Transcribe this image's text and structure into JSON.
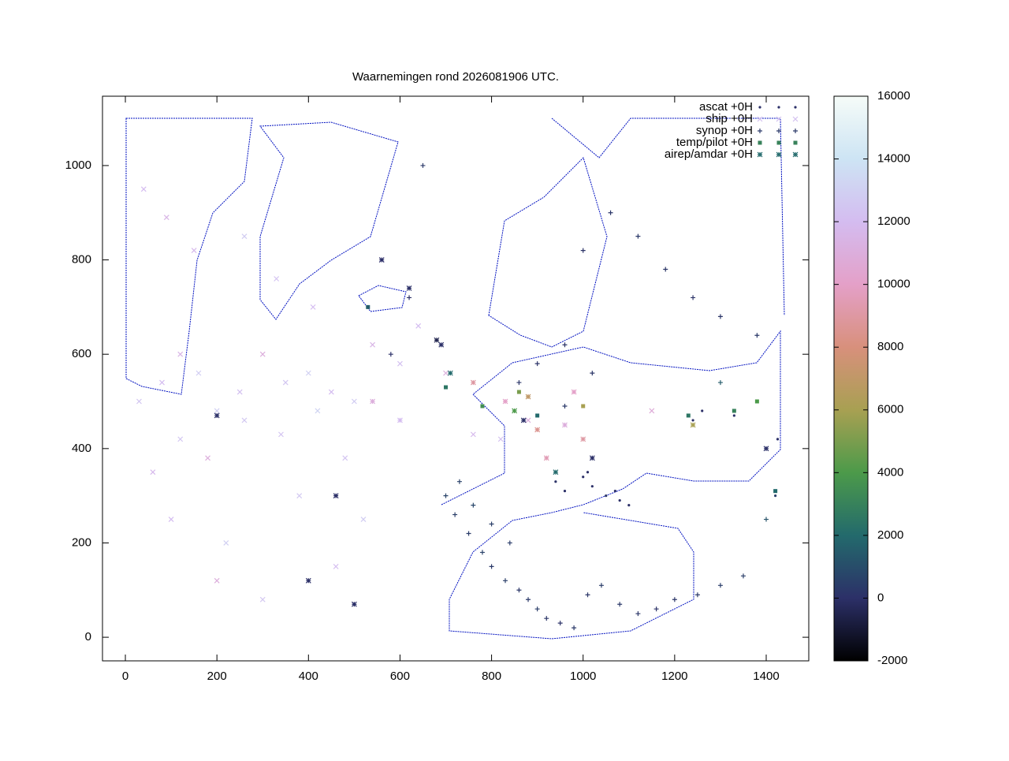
{
  "chart_data": {
    "type": "scatter",
    "title": "Waarnemingen rond 2026081906 UTC.",
    "xlim": [
      -50,
      1493
    ],
    "ylim": [
      -50,
      1147
    ],
    "xticks": [
      0,
      200,
      400,
      600,
      800,
      1000,
      1200,
      1400
    ],
    "yticks": [
      0,
      200,
      400,
      600,
      800,
      1000
    ],
    "legend": "top-right",
    "colorbar": {
      "range": [
        -2000,
        16000
      ],
      "ticks": [
        -2000,
        0,
        2000,
        4000,
        6000,
        8000,
        10000,
        12000,
        14000,
        16000
      ],
      "colors": [
        "#000000",
        "#2c3068",
        "#236a6c",
        "#4c9a4a",
        "#a8a052",
        "#d8907c",
        "#e4a0c8",
        "#d4bcf0",
        "#cde4f4",
        "#f6fcf8"
      ]
    },
    "series": [
      {
        "name": "ascat +0H",
        "marker": "dot",
        "x": [
          1000,
          1020,
          1050,
          1080,
          1100,
          960,
          940,
          1240,
          1260,
          1420,
          1425,
          1330,
          1010,
          1070
        ],
        "y": [
          340,
          320,
          300,
          290,
          280,
          310,
          330,
          460,
          480,
          300,
          420,
          470,
          350,
          310
        ],
        "z": [
          0,
          0,
          200,
          0,
          0,
          0,
          100,
          0,
          0,
          500,
          0,
          0,
          0,
          0
        ]
      },
      {
        "name": "ship +0H",
        "marker": "x",
        "x": [
          30,
          80,
          120,
          160,
          200,
          250,
          300,
          350,
          400,
          450,
          500,
          120,
          180,
          260,
          340,
          420,
          60,
          100,
          220,
          380,
          480,
          540,
          600,
          640,
          700,
          520,
          460,
          200,
          300,
          150,
          40,
          90,
          260,
          330,
          410,
          560,
          760,
          820,
          880,
          1150
        ],
        "y": [
          500,
          540,
          600,
          560,
          480,
          520,
          600,
          540,
          560,
          520,
          500,
          420,
          380,
          460,
          430,
          480,
          350,
          250,
          200,
          300,
          380,
          620,
          580,
          660,
          560,
          250,
          150,
          120,
          80,
          820,
          950,
          890,
          850,
          760,
          700,
          800,
          430,
          420,
          460,
          480
        ],
        "z": [
          12500,
          12000,
          11500,
          12800,
          13000,
          12200,
          11000,
          12500,
          13000,
          12000,
          12800,
          12500,
          11000,
          12600,
          12400,
          13200,
          11800,
          12000,
          13000,
          12600,
          12400,
          11500,
          12200,
          12000,
          11000,
          12800,
          12000,
          11000,
          12500,
          11800,
          12000,
          11500,
          12800,
          12300,
          12000,
          11500,
          11800,
          12200,
          11000,
          10800
        ]
      },
      {
        "name": "synop +0H",
        "marker": "plus",
        "x": [
          720,
          750,
          780,
          800,
          830,
          860,
          880,
          900,
          920,
          950,
          980,
          1010,
          1040,
          1080,
          1120,
          1160,
          1200,
          1250,
          1300,
          1350,
          1400,
          1000,
          1060,
          1120,
          1180,
          1240,
          1300,
          1380,
          700,
          730,
          760,
          800,
          840,
          900,
          960,
          1020,
          620,
          580,
          650,
          860,
          960,
          1300
        ],
        "y": [
          260,
          220,
          180,
          150,
          120,
          100,
          80,
          60,
          40,
          30,
          20,
          90,
          110,
          70,
          50,
          60,
          80,
          90,
          110,
          130,
          250,
          820,
          900,
          850,
          780,
          720,
          680,
          640,
          300,
          330,
          280,
          240,
          200,
          580,
          620,
          560,
          720,
          600,
          1000,
          540,
          490,
          540
        ],
        "z": [
          500,
          400,
          600,
          300,
          500,
          200,
          300,
          400,
          200,
          100,
          300,
          200,
          400,
          300,
          200,
          100,
          200,
          300,
          400,
          500,
          1200,
          100,
          200,
          300,
          200,
          100,
          200,
          300,
          700,
          600,
          800,
          500,
          400,
          100,
          100,
          200,
          0,
          0,
          300,
          200,
          300,
          1500
        ]
      },
      {
        "name": "temp/pilot +0H",
        "marker": "square",
        "x": [
          530,
          700,
          780,
          860,
          900,
          1000,
          1230,
          1330,
          1380,
          1420
        ],
        "y": [
          700,
          530,
          490,
          520,
          470,
          490,
          470,
          480,
          500,
          310
        ],
        "z": [
          1500,
          2500,
          3500,
          5000,
          2000,
          6000,
          2500,
          3000,
          4000,
          2000
        ]
      },
      {
        "name": "airep/amdar +0H",
        "marker": "star",
        "x": [
          680,
          690,
          710,
          760,
          830,
          850,
          870,
          880,
          900,
          920,
          940,
          960,
          1000,
          1020,
          980,
          1240,
          1400,
          200,
          400,
          460,
          620,
          560,
          540,
          600,
          500
        ],
        "y": [
          630,
          620,
          560,
          540,
          500,
          480,
          460,
          510,
          440,
          380,
          350,
          450,
          420,
          380,
          520,
          450,
          400,
          470,
          120,
          300,
          740,
          800,
          500,
          460,
          70
        ],
        "z": [
          -500,
          0,
          2000,
          9000,
          10000,
          4000,
          0,
          7000,
          8500,
          9500,
          2000,
          11000,
          9000,
          0,
          10000,
          6000,
          0,
          0,
          0,
          0,
          0,
          0,
          11000,
          12000,
          0
        ]
      }
    ]
  }
}
